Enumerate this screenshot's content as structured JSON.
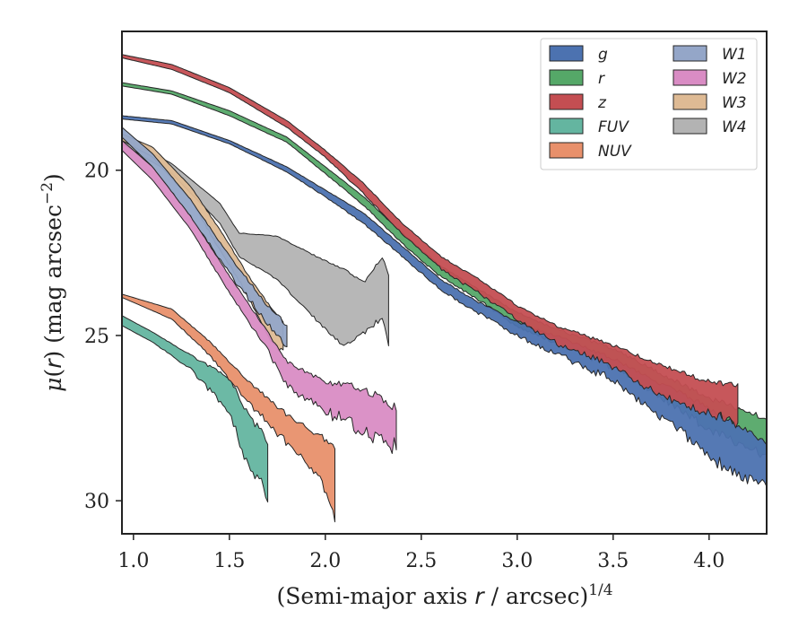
{
  "chart_data": {
    "type": "area",
    "xlabel": "(Semi-major axis r / arcsec)",
    "xlabel_prefix": "(Semi-major axis ",
    "xlabel_var": "r",
    "xlabel_suffix": " / arcsec)",
    "xlabel_sup": "1/4",
    "ylabel": "μ(r) (mag arcsec⁻²)",
    "ylabel_mu": "μ",
    "ylabel_open": "(",
    "ylabel_var": "r",
    "ylabel_close": ") (mag arcsec",
    "ylabel_sup": "−2",
    "ylabel_end": ")",
    "xlim": [
      0.94,
      4.3
    ],
    "ylim": [
      31.0,
      15.8
    ],
    "y_inverted": true,
    "xticks": [
      1.0,
      1.5,
      2.0,
      2.5,
      3.0,
      3.5,
      4.0
    ],
    "xtick_labels": [
      "1.0",
      "1.5",
      "2.0",
      "2.5",
      "3.0",
      "3.5",
      "4.0"
    ],
    "yticks": [
      20,
      25,
      30
    ],
    "ytick_labels": [
      "20",
      "25",
      "30"
    ],
    "grid": false,
    "legend_position": "top-right",
    "legend_columns": 2,
    "series": [
      {
        "name": "g",
        "color": "#4c72b0",
        "order": 7,
        "noise": 0.35,
        "upper": [
          [
            0.94,
            18.35
          ],
          [
            1.2,
            18.5
          ],
          [
            1.5,
            19.1
          ],
          [
            1.8,
            19.9
          ],
          [
            2.0,
            20.6
          ],
          [
            2.2,
            21.3
          ],
          [
            2.4,
            22.3
          ],
          [
            2.6,
            23.3
          ],
          [
            2.8,
            24.0
          ],
          [
            3.0,
            24.6
          ],
          [
            3.2,
            25.0
          ],
          [
            3.5,
            25.7
          ],
          [
            3.8,
            26.6
          ],
          [
            4.0,
            27.2
          ],
          [
            4.2,
            27.9
          ],
          [
            4.3,
            28.3
          ]
        ],
        "lower": [
          [
            0.94,
            18.45
          ],
          [
            1.2,
            18.6
          ],
          [
            1.5,
            19.2
          ],
          [
            1.8,
            20.05
          ],
          [
            2.0,
            20.8
          ],
          [
            2.2,
            21.6
          ],
          [
            2.4,
            22.6
          ],
          [
            2.6,
            23.6
          ],
          [
            2.8,
            24.3
          ],
          [
            3.0,
            25.0
          ],
          [
            3.2,
            25.5
          ],
          [
            3.5,
            26.3
          ],
          [
            3.8,
            27.6
          ],
          [
            4.0,
            28.6
          ],
          [
            4.2,
            29.3
          ],
          [
            4.3,
            29.4
          ]
        ]
      },
      {
        "name": "r",
        "color": "#55a868",
        "order": 6,
        "noise": 0.3,
        "upper": [
          [
            0.94,
            17.35
          ],
          [
            1.2,
            17.6
          ],
          [
            1.5,
            18.2
          ],
          [
            1.8,
            19.0
          ],
          [
            2.0,
            19.9
          ],
          [
            2.2,
            20.8
          ],
          [
            2.4,
            21.9
          ],
          [
            2.6,
            22.9
          ],
          [
            2.8,
            23.6
          ],
          [
            3.0,
            24.3
          ],
          [
            3.2,
            24.8
          ],
          [
            3.5,
            25.4
          ],
          [
            3.8,
            26.3
          ],
          [
            4.0,
            26.9
          ],
          [
            4.2,
            27.3
          ],
          [
            4.3,
            27.5
          ]
        ],
        "lower": [
          [
            0.94,
            17.45
          ],
          [
            1.2,
            17.7
          ],
          [
            1.5,
            18.35
          ],
          [
            1.8,
            19.15
          ],
          [
            2.0,
            20.1
          ],
          [
            2.2,
            21.05
          ],
          [
            2.4,
            22.2
          ],
          [
            2.6,
            23.2
          ],
          [
            2.8,
            23.9
          ],
          [
            3.0,
            24.7
          ],
          [
            3.2,
            25.2
          ],
          [
            3.5,
            25.9
          ],
          [
            3.8,
            27.0
          ],
          [
            4.0,
            27.8
          ],
          [
            4.2,
            28.3
          ],
          [
            4.3,
            28.5
          ]
        ]
      },
      {
        "name": "z",
        "color": "#c44e52",
        "order": 8,
        "noise": 0.28,
        "upper": [
          [
            0.94,
            16.5
          ],
          [
            1.2,
            16.8
          ],
          [
            1.5,
            17.5
          ],
          [
            1.8,
            18.5
          ],
          [
            2.0,
            19.4
          ],
          [
            2.2,
            20.4
          ],
          [
            2.4,
            21.6
          ],
          [
            2.6,
            22.6
          ],
          [
            2.8,
            23.3
          ],
          [
            3.0,
            24.1
          ],
          [
            3.2,
            24.7
          ],
          [
            3.5,
            25.3
          ],
          [
            3.8,
            26.0
          ],
          [
            4.0,
            26.4
          ],
          [
            4.15,
            26.5
          ]
        ],
        "lower": [
          [
            0.94,
            16.6
          ],
          [
            1.2,
            16.95
          ],
          [
            1.5,
            17.65
          ],
          [
            1.8,
            18.7
          ],
          [
            2.0,
            19.6
          ],
          [
            2.2,
            20.7
          ],
          [
            2.4,
            21.9
          ],
          [
            2.6,
            22.95
          ],
          [
            2.8,
            23.7
          ],
          [
            3.0,
            24.5
          ],
          [
            3.2,
            25.2
          ],
          [
            3.5,
            25.9
          ],
          [
            3.8,
            26.9
          ],
          [
            4.0,
            27.3
          ],
          [
            4.15,
            27.6
          ]
        ]
      },
      {
        "name": "FUV",
        "color": "#64b5a0",
        "order": 1,
        "noise": 0.45,
        "upper": [
          [
            0.94,
            24.4
          ],
          [
            1.1,
            24.9
          ],
          [
            1.3,
            25.6
          ],
          [
            1.5,
            26.3
          ],
          [
            1.6,
            27.4
          ],
          [
            1.7,
            28.2
          ]
        ],
        "lower": [
          [
            0.94,
            24.7
          ],
          [
            1.1,
            25.2
          ],
          [
            1.3,
            26.0
          ],
          [
            1.5,
            27.3
          ],
          [
            1.6,
            28.9
          ],
          [
            1.7,
            29.7
          ]
        ]
      },
      {
        "name": "NUV",
        "color": "#e8906b",
        "order": 2,
        "noise": 0.45,
        "upper": [
          [
            0.94,
            23.75
          ],
          [
            1.2,
            24.2
          ],
          [
            1.4,
            25.2
          ],
          [
            1.6,
            26.4
          ],
          [
            1.8,
            27.4
          ],
          [
            1.95,
            28.0
          ],
          [
            2.05,
            28.3
          ]
        ],
        "lower": [
          [
            0.94,
            23.85
          ],
          [
            1.2,
            24.5
          ],
          [
            1.4,
            25.6
          ],
          [
            1.6,
            27.0
          ],
          [
            1.8,
            28.2
          ],
          [
            1.95,
            29.1
          ],
          [
            2.05,
            30.2
          ]
        ]
      },
      {
        "name": "W1",
        "color": "#94a6c8",
        "order": 5,
        "noise": 0.25,
        "upper": [
          [
            0.94,
            18.7
          ],
          [
            1.1,
            19.5
          ],
          [
            1.3,
            20.9
          ],
          [
            1.5,
            22.6
          ],
          [
            1.7,
            24.1
          ],
          [
            1.8,
            24.7
          ]
        ],
        "lower": [
          [
            0.94,
            19.0
          ],
          [
            1.1,
            19.9
          ],
          [
            1.3,
            21.4
          ],
          [
            1.5,
            23.1
          ],
          [
            1.7,
            24.6
          ],
          [
            1.8,
            25.3
          ]
        ]
      },
      {
        "name": "W2",
        "color": "#d98cc4",
        "order": 4,
        "noise": 0.5,
        "upper": [
          [
            0.94,
            19.1
          ],
          [
            1.1,
            19.9
          ],
          [
            1.3,
            21.4
          ],
          [
            1.5,
            23.2
          ],
          [
            1.7,
            24.9
          ],
          [
            1.8,
            25.8
          ],
          [
            2.0,
            26.4
          ],
          [
            2.2,
            26.6
          ],
          [
            2.37,
            27.2
          ]
        ],
        "lower": [
          [
            0.94,
            19.4
          ],
          [
            1.1,
            20.3
          ],
          [
            1.3,
            21.8
          ],
          [
            1.5,
            23.7
          ],
          [
            1.7,
            25.4
          ],
          [
            1.8,
            26.5
          ],
          [
            2.0,
            27.2
          ],
          [
            2.2,
            27.8
          ],
          [
            2.37,
            28.2
          ]
        ]
      },
      {
        "name": "W3",
        "color": "#deba94",
        "order": 3,
        "noise": 0.2,
        "upper": [
          [
            0.94,
            18.9
          ],
          [
            1.1,
            19.3
          ],
          [
            1.3,
            20.5
          ],
          [
            1.45,
            21.8
          ],
          [
            1.6,
            23.2
          ],
          [
            1.72,
            24.2
          ],
          [
            1.78,
            24.6
          ]
        ],
        "lower": [
          [
            0.94,
            19.1
          ],
          [
            1.1,
            19.6
          ],
          [
            1.3,
            20.9
          ],
          [
            1.45,
            22.4
          ],
          [
            1.6,
            23.8
          ],
          [
            1.72,
            25.2
          ],
          [
            1.78,
            25.4
          ]
        ]
      },
      {
        "name": "W4",
        "color": "#b3b3b3",
        "order": 0,
        "noise": 0.15,
        "upper": [
          [
            0.94,
            19.0
          ],
          [
            1.2,
            19.8
          ],
          [
            1.45,
            21.0
          ],
          [
            1.55,
            21.9
          ],
          [
            1.75,
            22.0
          ],
          [
            1.95,
            22.6
          ],
          [
            2.1,
            23.0
          ],
          [
            2.2,
            23.4
          ],
          [
            2.3,
            22.6
          ],
          [
            2.33,
            23.2
          ]
        ],
        "lower": [
          [
            0.94,
            19.2
          ],
          [
            1.2,
            20.1
          ],
          [
            1.45,
            21.6
          ],
          [
            1.55,
            22.6
          ],
          [
            1.75,
            23.3
          ],
          [
            1.95,
            24.5
          ],
          [
            2.1,
            25.3
          ],
          [
            2.2,
            24.9
          ],
          [
            2.3,
            24.4
          ],
          [
            2.33,
            25.3
          ]
        ]
      }
    ]
  }
}
